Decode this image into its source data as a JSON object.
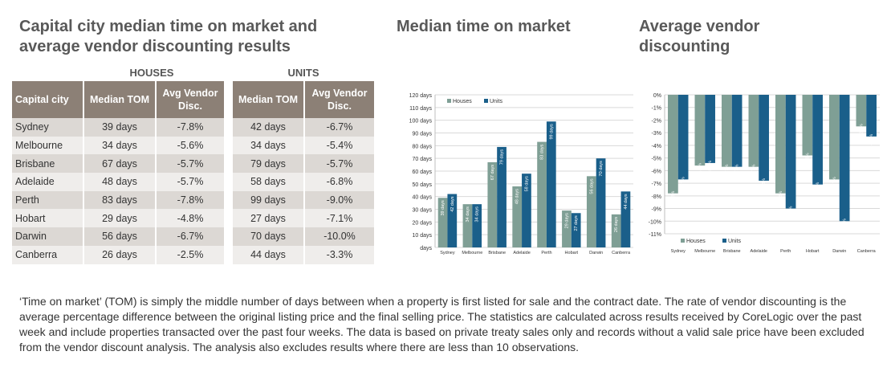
{
  "titles": {
    "main": "Capital city median time on market and average vendor discounting results",
    "tom": "Median time on market",
    "disc": "Average vendor discounting"
  },
  "table": {
    "group_houses": "HOUSES",
    "group_units": "UNITS",
    "head_city": "Capital city",
    "head_tom": "Median TOM",
    "head_disc": "Avg Vendor Disc.",
    "rows": [
      {
        "city": "Sydney",
        "h_tom": "39 days",
        "h_disc": "-7.8%",
        "u_tom": "42 days",
        "u_disc": "-6.7%"
      },
      {
        "city": "Melbourne",
        "h_tom": "34 days",
        "h_disc": "-5.6%",
        "u_tom": "34 days",
        "u_disc": "-5.4%"
      },
      {
        "city": "Brisbane",
        "h_tom": "67 days",
        "h_disc": "-5.7%",
        "u_tom": "79 days",
        "u_disc": "-5.7%"
      },
      {
        "city": "Adelaide",
        "h_tom": "48 days",
        "h_disc": "-5.7%",
        "u_tom": "58 days",
        "u_disc": "-6.8%"
      },
      {
        "city": "Perth",
        "h_tom": "83 days",
        "h_disc": "-7.8%",
        "u_tom": "99 days",
        "u_disc": "-9.0%"
      },
      {
        "city": "Hobart",
        "h_tom": "29 days",
        "h_disc": "-4.8%",
        "u_tom": "27 days",
        "u_disc": "-7.1%"
      },
      {
        "city": "Darwin",
        "h_tom": "56 days",
        "h_disc": "-6.7%",
        "u_tom": "70 days",
        "u_disc": "-10.0%"
      },
      {
        "city": "Canberra",
        "h_tom": "26 days",
        "h_disc": "-2.5%",
        "u_tom": "44 days",
        "u_disc": "-3.3%"
      }
    ]
  },
  "chart_data": [
    {
      "type": "bar",
      "title": "Median time on market",
      "categories": [
        "Sydney",
        "Melbourne",
        "Brisbane",
        "Adelaide",
        "Perth",
        "Hobart",
        "Darwin",
        "Canberra"
      ],
      "series": [
        {
          "name": "Houses",
          "values": [
            39,
            34,
            67,
            48,
            83,
            29,
            56,
            26
          ],
          "labels": [
            "39 days",
            "34 days",
            "67 days",
            "48 days",
            "83 days",
            "29 days",
            "56 days",
            "26 days"
          ]
        },
        {
          "name": "Units",
          "values": [
            42,
            34,
            79,
            58,
            99,
            27,
            70,
            44
          ],
          "labels": [
            "42 days",
            "34 days",
            "79 days",
            "58 days",
            "99 days",
            "27 days",
            "70 days",
            "44 days"
          ]
        }
      ],
      "ylim": [
        0,
        120
      ],
      "yticks": [
        "days",
        "10 days",
        "20 days",
        "30 days",
        "40 days",
        "50 days",
        "60 days",
        "70 days",
        "80 days",
        "90 days",
        "100 days",
        "110 days",
        "120 days"
      ],
      "legend": "top-left",
      "grid": true
    },
    {
      "type": "bar",
      "title": "Average vendor discounting",
      "categories": [
        "Sydney",
        "Melbourne",
        "Brisbane",
        "Adelaide",
        "Perth",
        "Hobart",
        "Darwin",
        "Canberra"
      ],
      "series": [
        {
          "name": "Houses",
          "values": [
            -7.8,
            -5.6,
            -5.7,
            -5.7,
            -7.8,
            -4.8,
            -6.7,
            -2.5
          ],
          "labels": [
            "-7.8%",
            "-5.6%",
            "-5.7%",
            "-5.7%",
            "-7.8%",
            "-4.8%",
            "-6.7%",
            "-2.5%"
          ]
        },
        {
          "name": "Units",
          "values": [
            -6.7,
            -5.4,
            -5.7,
            -6.8,
            -9.0,
            -7.1,
            -10.0,
            -3.3
          ],
          "labels": [
            "-6.7%",
            "-5.4%",
            "-5.7%",
            "-6.8%",
            "-9.0%",
            "-7.1%",
            "-10.0%",
            "-3.3%"
          ]
        }
      ],
      "ylim": [
        -11,
        0
      ],
      "yticks": [
        "0%",
        "-1%",
        "-2%",
        "-3%",
        "-4%",
        "-5%",
        "-6%",
        "-7%",
        "-8%",
        "-9%",
        "-10%",
        "-11%"
      ],
      "legend": "bottom-left",
      "grid": true
    }
  ],
  "colors": {
    "houses": "#7f9f95",
    "units": "#1a5f8a",
    "header": "#8c8076",
    "row_odd": "#dcd8d4",
    "row_even": "#efedeb"
  },
  "note": "‘Time on market’ (TOM) is simply the middle number of days between when a property is first listed for sale and the contract date.  The rate of vendor discounting is the average percentage difference between the original listing price and the final selling price.  The statistics are calculated across results received by CoreLogic over the past week and include properties transacted over the past four weeks. The data is based on private treaty sales only and records without a valid sale price have been excluded from the vendor discount analysis. The analysis also excludes results where there are less than 10 observations."
}
